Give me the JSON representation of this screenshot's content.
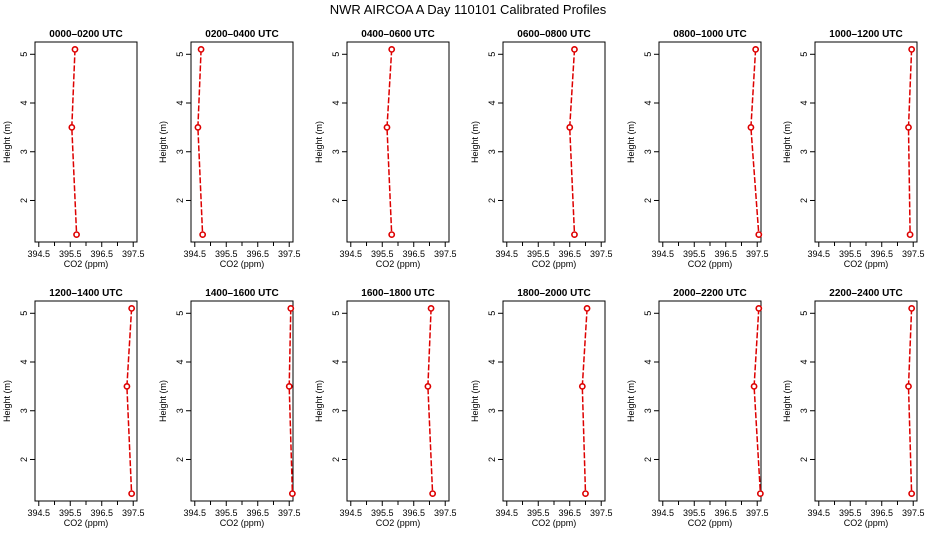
{
  "title": "NWR AIRCOA A  Day 110101  Calibrated Profiles",
  "colors": {
    "series": "#dd0000",
    "frame": "#000000"
  },
  "chart_data": {
    "type": "line",
    "xlabel": "CO2 (ppm)",
    "ylabel": "Height (m)",
    "xlim": [
      394.5,
      397.5
    ],
    "ylim": [
      1.3,
      5.1
    ],
    "xticks": [
      "394.5",
      "395.5",
      "396.5",
      "397.5"
    ],
    "xticks_minor": [
      395.0,
      396.0,
      397.0
    ],
    "yticks": [
      "2",
      "3",
      "4",
      "5"
    ],
    "grid": false,
    "panels": [
      {
        "title": "0000–0200 UTC",
        "x": [
          395.65,
          395.55,
          395.7
        ],
        "y": [
          5.1,
          3.5,
          1.3
        ]
      },
      {
        "title": "0200–0400 UTC",
        "x": [
          394.7,
          394.6,
          394.75
        ],
        "y": [
          5.1,
          3.5,
          1.3
        ]
      },
      {
        "title": "0400–0600 UTC",
        "x": [
          395.8,
          395.65,
          395.8
        ],
        "y": [
          5.1,
          3.5,
          1.3
        ]
      },
      {
        "title": "0600–0800 UTC",
        "x": [
          396.65,
          396.5,
          396.65
        ],
        "y": [
          5.1,
          3.5,
          1.3
        ]
      },
      {
        "title": "0800–1000 UTC",
        "x": [
          397.45,
          397.3,
          397.55
        ],
        "y": [
          5.1,
          3.5,
          1.3
        ]
      },
      {
        "title": "1000–1200 UTC",
        "x": [
          397.45,
          397.35,
          397.4
        ],
        "y": [
          5.1,
          3.5,
          1.3
        ]
      },
      {
        "title": "1200–1400 UTC",
        "x": [
          397.45,
          397.3,
          397.45
        ],
        "y": [
          5.1,
          3.5,
          1.3
        ]
      },
      {
        "title": "1400–1600 UTC",
        "x": [
          397.55,
          397.5,
          397.6
        ],
        "y": [
          5.1,
          3.5,
          1.3
        ]
      },
      {
        "title": "1600–1800 UTC",
        "x": [
          397.05,
          396.95,
          397.1
        ],
        "y": [
          5.1,
          3.5,
          1.3
        ]
      },
      {
        "title": "1800–2000 UTC",
        "x": [
          397.05,
          396.9,
          397.0
        ],
        "y": [
          5.1,
          3.5,
          1.3
        ]
      },
      {
        "title": "2000–2200 UTC",
        "x": [
          397.55,
          397.4,
          397.6
        ],
        "y": [
          5.1,
          3.5,
          1.3
        ]
      },
      {
        "title": "2200–2400 UTC",
        "x": [
          397.45,
          397.35,
          397.45
        ],
        "y": [
          5.1,
          3.5,
          1.3
        ]
      }
    ]
  }
}
